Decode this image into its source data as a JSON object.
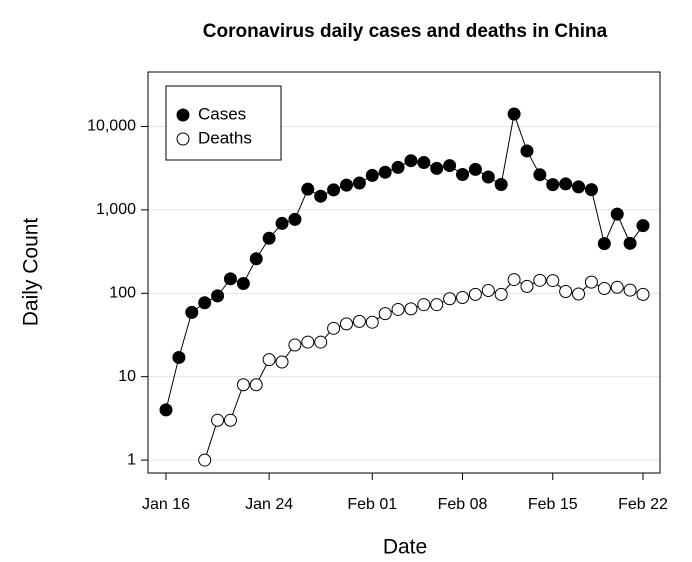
{
  "chart_data": {
    "type": "line",
    "title": "Coronavirus daily cases and deaths in China",
    "xlabel": "Date",
    "ylabel": "Daily Count",
    "x": [
      "Jan 16",
      "Jan 17",
      "Jan 18",
      "Jan 19",
      "Jan 20",
      "Jan 21",
      "Jan 22",
      "Jan 23",
      "Jan 24",
      "Jan 25",
      "Jan 26",
      "Jan 27",
      "Jan 28",
      "Jan 29",
      "Jan 30",
      "Jan 31",
      "Feb 01",
      "Feb 02",
      "Feb 03",
      "Feb 04",
      "Feb 05",
      "Feb 06",
      "Feb 07",
      "Feb 08",
      "Feb 09",
      "Feb 10",
      "Feb 11",
      "Feb 12",
      "Feb 13",
      "Feb 14",
      "Feb 15",
      "Feb 16",
      "Feb 17",
      "Feb 18",
      "Feb 19",
      "Feb 20",
      "Feb 21",
      "Feb 22"
    ],
    "series": [
      {
        "name": "Cases",
        "color": "#000000",
        "fill": "#000000",
        "values": [
          4,
          17,
          59,
          77,
          93,
          149,
          131,
          259,
          457,
          688,
          769,
          1771,
          1459,
          1737,
          1982,
          2102,
          2590,
          2829,
          3235,
          3887,
          3694,
          3143,
          3399,
          2656,
          3062,
          2478,
          2015,
          14108,
          5090,
          2641,
          2008,
          2048,
          1886,
          1749,
          394,
          889,
          397,
          648
        ]
      },
      {
        "name": "Deaths",
        "color": "#000000",
        "fill": "#ffffff",
        "values": [
          null,
          null,
          null,
          1,
          3,
          3,
          8,
          8,
          16,
          15,
          24,
          26,
          26,
          38,
          43,
          46,
          45,
          57,
          64,
          65,
          73,
          73,
          86,
          89,
          97,
          108,
          97,
          146,
          121,
          143,
          142,
          105,
          98,
          136,
          114,
          118,
          109,
          97
        ]
      }
    ],
    "xticks": [
      "Jan 16",
      "Jan 24",
      "Feb 01",
      "Feb 08",
      "Feb 15",
      "Feb 22"
    ],
    "ylim": [
      0.7,
      45000
    ],
    "log_y": true,
    "yticks": [
      1,
      10,
      100,
      {
        "value": 1000,
        "label": "1,000"
      },
      {
        "value": 10000,
        "label": "10,000"
      }
    ],
    "grid": true,
    "legend": "top-left"
  }
}
